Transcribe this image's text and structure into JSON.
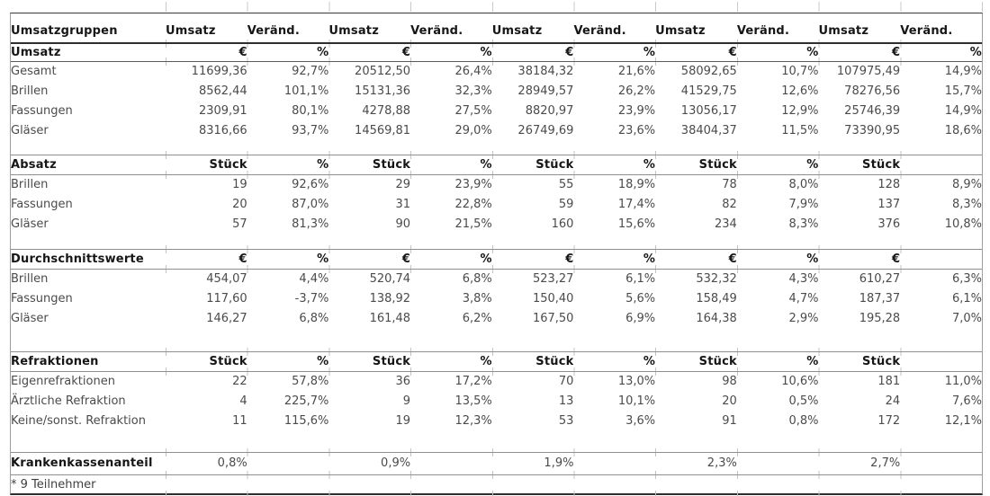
{
  "table": {
    "columns": [
      "Umsatzgruppen",
      "Umsatz",
      "Veränd.",
      "Umsatz",
      "Veränd.",
      "Umsatz",
      "Veränd.",
      "Umsatz",
      "Veränd.",
      "Umsatz",
      "Veränd."
    ],
    "sections": [
      {
        "name": "Umsatz",
        "units": [
          "€",
          "%",
          "€",
          "%",
          "€",
          "%",
          "€",
          "%",
          "€",
          "%"
        ],
        "rows": [
          {
            "label": "Gesamt",
            "cells": [
              "11699,36",
              "92,7%",
              "20512,50",
              "26,4%",
              "38184,32",
              "21,6%",
              "58092,65",
              "10,7%",
              "107975,49",
              "14,9%"
            ]
          },
          {
            "label": "Brillen",
            "cells": [
              "8562,44",
              "101,1%",
              "15131,36",
              "32,3%",
              "28949,57",
              "26,2%",
              "41529,75",
              "12,6%",
              "78276,56",
              "15,7%"
            ]
          },
          {
            "label": "Fassungen",
            "cells": [
              "2309,91",
              "80,1%",
              "4278,88",
              "27,5%",
              "8820,97",
              "23,9%",
              "13056,17",
              "12,9%",
              "25746,39",
              "14,9%"
            ]
          },
          {
            "label": "Gläser",
            "cells": [
              "8316,66",
              "93,7%",
              "14569,81",
              "29,0%",
              "26749,69",
              "23,6%",
              "38404,37",
              "11,5%",
              "73390,95",
              "18,6%"
            ]
          }
        ]
      },
      {
        "name": "Absatz",
        "units": [
          "Stück",
          "%",
          "Stück",
          "%",
          "Stück",
          "%",
          "Stück",
          "%",
          "Stück",
          ""
        ],
        "rows": [
          {
            "label": "Brillen",
            "cells": [
              "19",
              "92,6%",
              "29",
              "23,9%",
              "55",
              "18,9%",
              "78",
              "8,0%",
              "128",
              "8,9%"
            ]
          },
          {
            "label": "Fassungen",
            "cells": [
              "20",
              "87,0%",
              "31",
              "22,8%",
              "59",
              "17,4%",
              "82",
              "7,9%",
              "137",
              "8,3%"
            ]
          },
          {
            "label": "Gläser",
            "cells": [
              "57",
              "81,3%",
              "90",
              "21,5%",
              "160",
              "15,6%",
              "234",
              "8,3%",
              "376",
              "10,8%"
            ]
          }
        ]
      },
      {
        "name": "Durchschnittswerte",
        "units": [
          "€",
          "%",
          "€",
          "%",
          "€",
          "%",
          "€",
          "%",
          "€",
          ""
        ],
        "rows": [
          {
            "label": "Brillen",
            "cells": [
              "454,07",
              "4,4%",
              "520,74",
              "6,8%",
              "523,27",
              "6,1%",
              "532,32",
              "4,3%",
              "610,27",
              "6,3%"
            ]
          },
          {
            "label": "Fassungen",
            "cells": [
              "117,60",
              "-3,7%",
              "138,92",
              "3,8%",
              "150,40",
              "5,6%",
              "158,49",
              "4,7%",
              "187,37",
              "6,1%"
            ]
          },
          {
            "label": "Gläser",
            "cells": [
              "146,27",
              "6,8%",
              "161,48",
              "6,2%",
              "167,50",
              "6,9%",
              "164,38",
              "2,9%",
              "195,28",
              "7,0%"
            ]
          }
        ]
      },
      {
        "name": "Refraktionen",
        "units": [
          "Stück",
          "%",
          "Stück",
          "%",
          "Stück",
          "%",
          "Stück",
          "%",
          "Stück",
          ""
        ],
        "rows": [
          {
            "label": "Eigenrefraktionen",
            "cells": [
              "22",
              "57,8%",
              "36",
              "17,2%",
              "70",
              "13,0%",
              "98",
              "10,6%",
              "181",
              "11,0%"
            ]
          },
          {
            "label": "Ärztliche Refraktion",
            "cells": [
              "4",
              "225,7%",
              "9",
              "13,5%",
              "13",
              "10,1%",
              "20",
              "0,5%",
              "24",
              "7,6%"
            ]
          },
          {
            "label": "Keine/sonst. Refraktion",
            "cells": [
              "11",
              "115,6%",
              "19",
              "12,3%",
              "53",
              "3,6%",
              "91",
              "0,8%",
              "172",
              "12,1%"
            ]
          }
        ]
      }
    ],
    "krankenkassenanteil": {
      "label": "Krankenkassenanteil",
      "cells": [
        "0,8%",
        "",
        "0,9%",
        "",
        "1,9%",
        "",
        "2,3%",
        "",
        "2,7%",
        ""
      ]
    },
    "footnote": "* 9 Teilnehmer"
  },
  "colors": {
    "text_headings": "#161616",
    "text_data": "#4b4b4b",
    "rule_dark": "#2e2e2e",
    "rule_gray": "#8f8f8f"
  }
}
